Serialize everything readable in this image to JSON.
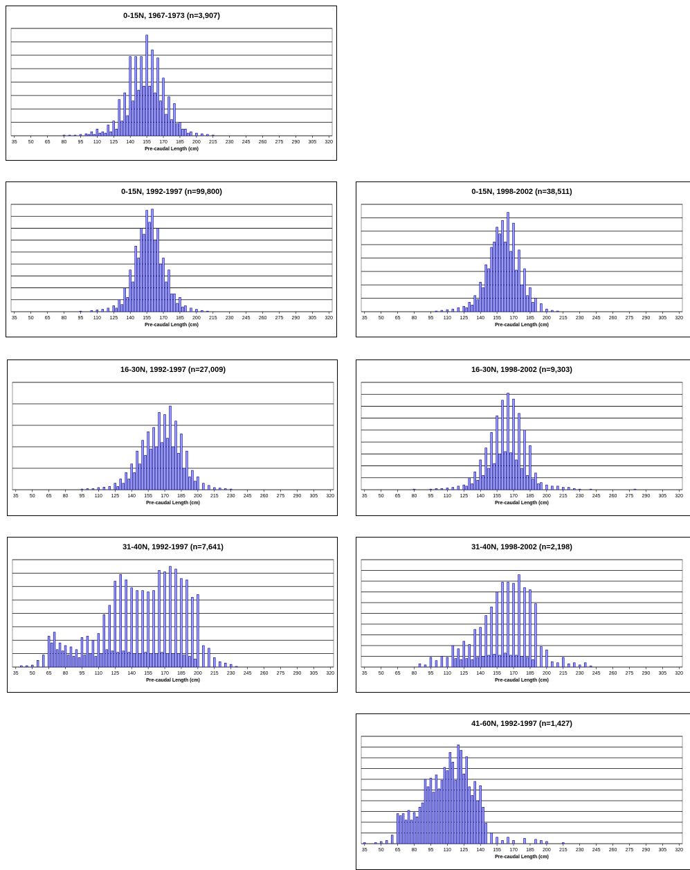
{
  "chart_data": [
    {
      "type": "bar",
      "title": "0-15N, 1967-1973 (n=3,907)",
      "x_label": "Pre-caudal Length (cm)",
      "color": "#9999ff",
      "grid": true,
      "xlim": [
        32,
        323
      ],
      "xticks": [
        35,
        50,
        65,
        80,
        95,
        110,
        125,
        140,
        155,
        170,
        185,
        200,
        215,
        230,
        245,
        260,
        275,
        290,
        305,
        320
      ],
      "ylim": [
        0,
        8
      ],
      "yticks": [
        0,
        1,
        2,
        3,
        4,
        5,
        6,
        7,
        8
      ],
      "x": [
        80,
        85,
        90,
        95,
        100,
        102.5,
        105,
        107.5,
        110,
        112.5,
        115,
        117.5,
        120,
        122.5,
        125,
        127.5,
        130,
        132.5,
        135,
        137.5,
        140,
        142.5,
        145,
        147.5,
        150,
        152.5,
        155,
        157.5,
        160,
        162.5,
        165,
        167.5,
        170,
        172.5,
        175,
        177.5,
        180,
        182.5,
        185,
        187.5,
        190,
        192.5,
        195,
        200,
        205,
        210,
        215
      ],
      "values": [
        0.05,
        0.05,
        0.05,
        0.1,
        0.15,
        0.1,
        0.3,
        0.1,
        0.5,
        0.2,
        0.3,
        0.2,
        0.8,
        0.3,
        1.1,
        0.5,
        2.7,
        1.1,
        3.2,
        1.5,
        5.9,
        2.6,
        5.9,
        3.4,
        5.9,
        3.7,
        7.5,
        3.7,
        6.4,
        3.2,
        5.8,
        2.6,
        4.3,
        1.6,
        2.9,
        1.2,
        2.4,
        0.9,
        1.0,
        0.5,
        0.5,
        0.2,
        0.3,
        0.2,
        0.15,
        0.1,
        0.05
      ]
    },
    {
      "type": "bar",
      "title": "0-15N, 1992-1997 (n=99,800)",
      "x_label": "Pre-caudal Length (cm)",
      "color": "#9999ff",
      "grid": true,
      "xlim": [
        32,
        323
      ],
      "xticks": [
        35,
        50,
        65,
        80,
        95,
        110,
        125,
        140,
        155,
        170,
        185,
        200,
        215,
        230,
        245,
        260,
        275,
        290,
        305,
        320
      ],
      "ylim": [
        0,
        9
      ],
      "yticks": [
        0,
        1,
        2,
        3,
        4,
        5,
        6,
        7,
        8,
        9
      ],
      "x": [
        95,
        105,
        110,
        115,
        120,
        125,
        127.5,
        130,
        132.5,
        135,
        137.5,
        140,
        142.5,
        145,
        147.5,
        150,
        152.5,
        155,
        157.5,
        160,
        162.5,
        165,
        167.5,
        170,
        172.5,
        175,
        177.5,
        180,
        182.5,
        185,
        187.5,
        190,
        195,
        200,
        205,
        210
      ],
      "values": [
        0.05,
        0.1,
        0.15,
        0.2,
        0.3,
        0.5,
        0.3,
        1.0,
        0.6,
        2.0,
        1.2,
        3.5,
        2.5,
        5.5,
        4.5,
        7.0,
        6.5,
        8.5,
        7.5,
        8.6,
        6.0,
        7.0,
        4.0,
        4.5,
        2.5,
        3.5,
        1.5,
        1.5,
        0.7,
        1.2,
        0.4,
        0.5,
        0.3,
        0.2,
        0.1,
        0.05
      ]
    },
    {
      "type": "bar",
      "title": "0-15N, 1998-2002 (n=38,511)",
      "x_label": "Pre-caudal Length (cm)",
      "color": "#9999ff",
      "grid": true,
      "xlim": [
        32,
        323
      ],
      "xticks": [
        35,
        50,
        65,
        80,
        95,
        110,
        125,
        140,
        155,
        170,
        185,
        200,
        215,
        230,
        245,
        260,
        275,
        290,
        305,
        320
      ],
      "ylim": [
        0,
        8
      ],
      "yticks": [
        0,
        1,
        2,
        3,
        4,
        5,
        6,
        7,
        8
      ],
      "x": [
        100,
        105,
        110,
        115,
        120,
        125,
        127.5,
        130,
        132.5,
        135,
        137.5,
        140,
        142.5,
        145,
        147.5,
        150,
        152.5,
        155,
        157.5,
        160,
        162.5,
        165,
        167.5,
        170,
        172.5,
        175,
        177.5,
        180,
        182.5,
        185,
        187.5,
        190,
        195,
        200,
        205,
        210
      ],
      "values": [
        0.05,
        0.1,
        0.15,
        0.2,
        0.3,
        0.4,
        0.3,
        0.7,
        0.5,
        1.2,
        0.9,
        2.2,
        1.8,
        3.5,
        3.2,
        4.8,
        5.2,
        6.3,
        5.8,
        6.8,
        5.2,
        7.4,
        4.5,
        6.6,
        3.1,
        4.6,
        2.0,
        3.2,
        1.2,
        1.8,
        0.7,
        1.0,
        0.6,
        0.2,
        0.1,
        0.05
      ]
    },
    {
      "type": "bar",
      "title": "16-30N, 1992-1997 (n=27,009)",
      "x_label": "Pre-caudal Length (cm)",
      "color": "#9999ff",
      "grid": true,
      "xlim": [
        32,
        323
      ],
      "xticks": [
        35,
        50,
        65,
        80,
        95,
        110,
        125,
        140,
        155,
        170,
        185,
        200,
        215,
        230,
        245,
        260,
        275,
        290,
        305,
        320
      ],
      "ylim": [
        0,
        5
      ],
      "yticks": [
        0,
        1,
        2,
        3,
        4,
        5
      ],
      "x": [
        95,
        100,
        105,
        110,
        115,
        120,
        125,
        127.5,
        130,
        132.5,
        135,
        137.5,
        140,
        142.5,
        145,
        147.5,
        150,
        152.5,
        155,
        157.5,
        160,
        162.5,
        165,
        167.5,
        170,
        172.5,
        175,
        177.5,
        180,
        182.5,
        185,
        187.5,
        190,
        192.5,
        195,
        197.5,
        200,
        205,
        210,
        215,
        220,
        225,
        230
      ],
      "values": [
        0.03,
        0.05,
        0.05,
        0.1,
        0.12,
        0.15,
        0.3,
        0.15,
        0.5,
        0.3,
        0.8,
        0.5,
        1.2,
        0.8,
        1.8,
        1.2,
        2.3,
        1.6,
        2.7,
        1.9,
        2.9,
        2.0,
        3.6,
        2.2,
        3.5,
        2.4,
        3.9,
        2.0,
        3.2,
        1.7,
        2.6,
        1.0,
        1.8,
        0.6,
        0.9,
        0.4,
        0.6,
        0.3,
        0.2,
        0.1,
        0.08,
        0.05,
        0.03
      ]
    },
    {
      "type": "bar",
      "title": "16-30N, 1998-2002 (n=9,303)",
      "x_label": "Pre-caudal Length (cm)",
      "color": "#9999ff",
      "grid": true,
      "xlim": [
        32,
        323
      ],
      "xticks": [
        35,
        50,
        65,
        80,
        95,
        110,
        125,
        140,
        155,
        170,
        185,
        200,
        215,
        230,
        245,
        260,
        275,
        290,
        305,
        320
      ],
      "ylim": [
        0,
        9
      ],
      "yticks": [
        0,
        1,
        2,
        3,
        4,
        5,
        6,
        7,
        8,
        9
      ],
      "x": [
        80,
        95,
        100,
        105,
        110,
        115,
        120,
        125,
        127.5,
        130,
        132.5,
        135,
        137.5,
        140,
        142.5,
        145,
        147.5,
        150,
        152.5,
        155,
        157.5,
        160,
        162.5,
        165,
        167.5,
        170,
        172.5,
        175,
        177.5,
        180,
        182.5,
        185,
        187.5,
        190,
        192.5,
        195,
        200,
        205,
        210,
        215,
        220,
        225,
        230,
        240,
        280
      ],
      "values": [
        0.05,
        0.05,
        0.1,
        0.1,
        0.15,
        0.2,
        0.3,
        0.4,
        0.3,
        1.0,
        0.5,
        1.5,
        0.8,
        2.5,
        1.2,
        3.5,
        1.8,
        4.8,
        2.2,
        6.2,
        3.0,
        7.5,
        3.2,
        8.1,
        3.1,
        7.6,
        2.5,
        6.4,
        1.8,
        5.0,
        1.2,
        3.7,
        0.9,
        1.4,
        0.5,
        0.6,
        0.4,
        0.3,
        0.3,
        0.2,
        0.2,
        0.1,
        0.05,
        0.05,
        0.05
      ]
    },
    {
      "type": "bar",
      "title": "31-40N, 1992-1997 (n=7,641)",
      "x_label": "Pre-caudal Length (cm)",
      "color": "#9999ff",
      "grid": true,
      "xlim": [
        32,
        323
      ],
      "xticks": [
        35,
        50,
        65,
        80,
        95,
        110,
        125,
        140,
        155,
        170,
        185,
        200,
        215,
        230,
        245,
        260,
        275,
        290,
        305,
        320
      ],
      "ylim": [
        0,
        8
      ],
      "yticks": [
        0,
        1,
        2,
        3,
        4,
        5,
        6,
        7,
        8
      ],
      "x": [
        40,
        45,
        50,
        55,
        60,
        65,
        67.5,
        70,
        72.5,
        75,
        77.5,
        80,
        82.5,
        85,
        87.5,
        90,
        92.5,
        95,
        97.5,
        100,
        102.5,
        105,
        107.5,
        110,
        112.5,
        115,
        117.5,
        120,
        122.5,
        125,
        127.5,
        130,
        132.5,
        135,
        137.5,
        140,
        142.5,
        145,
        147.5,
        150,
        152.5,
        155,
        157.5,
        160,
        162.5,
        165,
        167.5,
        170,
        172.5,
        175,
        177.5,
        180,
        182.5,
        185,
        187.5,
        190,
        192.5,
        195,
        197.5,
        200,
        205,
        210,
        215,
        220,
        225,
        230,
        235
      ],
      "values": [
        0.1,
        0.1,
        0.15,
        0.5,
        0.9,
        2.3,
        1.8,
        2.6,
        1.3,
        1.8,
        1.2,
        1.6,
        0.9,
        1.5,
        0.8,
        1.3,
        0.7,
        2.2,
        0.9,
        2.3,
        1.0,
        2.0,
        0.8,
        2.5,
        1.0,
        3.9,
        1.3,
        4.6,
        1.2,
        6.4,
        1.1,
        6.9,
        1.2,
        6.5,
        1.1,
        5.9,
        1.0,
        5.7,
        1.0,
        5.7,
        1.1,
        5.6,
        1.0,
        5.7,
        1.0,
        7.2,
        1.1,
        7.1,
        1.0,
        7.5,
        1.0,
        7.3,
        1.0,
        6.6,
        0.9,
        6.5,
        0.8,
        5.2,
        0.6,
        5.4,
        1.6,
        1.4,
        0.7,
        0.4,
        0.3,
        0.2,
        0.05
      ]
    },
    {
      "type": "bar",
      "title": "31-40N, 1998-2002 (n=2,198)",
      "x_label": "Pre-caudal Length (cm)",
      "color": "#9999ff",
      "grid": true,
      "xlim": [
        32,
        323
      ],
      "xticks": [
        35,
        50,
        65,
        80,
        95,
        110,
        125,
        140,
        155,
        170,
        185,
        200,
        215,
        230,
        245,
        260,
        275,
        290,
        305,
        320
      ],
      "ylim": [
        0,
        10
      ],
      "yticks": [
        0,
        1,
        2,
        3,
        4,
        5,
        6,
        7,
        8,
        9,
        10
      ],
      "x": [
        85,
        90,
        95,
        100,
        105,
        110,
        115,
        117.5,
        120,
        122.5,
        125,
        127.5,
        130,
        132.5,
        135,
        137.5,
        140,
        142.5,
        145,
        147.5,
        150,
        152.5,
        155,
        157.5,
        160,
        162.5,
        165,
        167.5,
        170,
        172.5,
        175,
        177.5,
        180,
        182.5,
        185,
        187.5,
        190,
        195,
        200,
        205,
        210,
        215,
        220,
        225,
        230,
        235,
        240
      ],
      "values": [
        0.3,
        0.2,
        0.9,
        0.6,
        1.0,
        0.9,
        2.0,
        0.8,
        1.7,
        0.7,
        2.4,
        0.8,
        2.1,
        0.7,
        3.5,
        0.9,
        3.7,
        1.0,
        4.8,
        1.1,
        5.6,
        1.2,
        7.0,
        1.1,
        7.9,
        1.3,
        7.9,
        1.1,
        7.8,
        1.1,
        8.6,
        1.0,
        7.4,
        0.9,
        7.2,
        0.7,
        5.9,
        1.9,
        1.6,
        0.5,
        0.4,
        0.9,
        0.3,
        0.4,
        0.2,
        0.4,
        0.1
      ]
    },
    {
      "type": "bar",
      "title": "41-60N, 1992-1997 (n=1,427)",
      "x_label": "Pre-caudal Length (cm)",
      "color": "#9999ff",
      "grid": true,
      "xlim": [
        32,
        323
      ],
      "xticks": [
        35,
        50,
        65,
        80,
        95,
        110,
        125,
        140,
        155,
        170,
        185,
        200,
        215,
        230,
        245,
        260,
        275,
        290,
        305,
        320
      ],
      "ylim": [
        0,
        10
      ],
      "yticks": [
        0,
        1,
        2,
        3,
        4,
        5,
        6,
        7,
        8,
        9,
        10
      ],
      "x": [
        35,
        45,
        50,
        55,
        60,
        65,
        67.5,
        70,
        72.5,
        75,
        77.5,
        80,
        82.5,
        85,
        87.5,
        90,
        92.5,
        95,
        97.5,
        100,
        102.5,
        105,
        107.5,
        110,
        112.5,
        115,
        117.5,
        120,
        122.5,
        125,
        127.5,
        130,
        132.5,
        135,
        137.5,
        140,
        142.5,
        145,
        150,
        155,
        160,
        165,
        170,
        180,
        190,
        195,
        200,
        215
      ],
      "values": [
        0.1,
        0.1,
        0.2,
        0.3,
        0.8,
        2.8,
        2.6,
        2.8,
        2.2,
        3.1,
        2.2,
        2.9,
        2.5,
        3.4,
        3.8,
        6.0,
        5.3,
        6.1,
        4.8,
        6.4,
        5.1,
        5.9,
        7.1,
        6.8,
        8.5,
        7.6,
        5.9,
        9.2,
        8.7,
        6.5,
        8.1,
        5.3,
        4.5,
        5.8,
        4.0,
        5.4,
        3.4,
        1.9,
        1.0,
        0.6,
        0.3,
        0.6,
        0.3,
        0.5,
        0.4,
        0.3,
        0.2,
        0.1
      ]
    }
  ]
}
